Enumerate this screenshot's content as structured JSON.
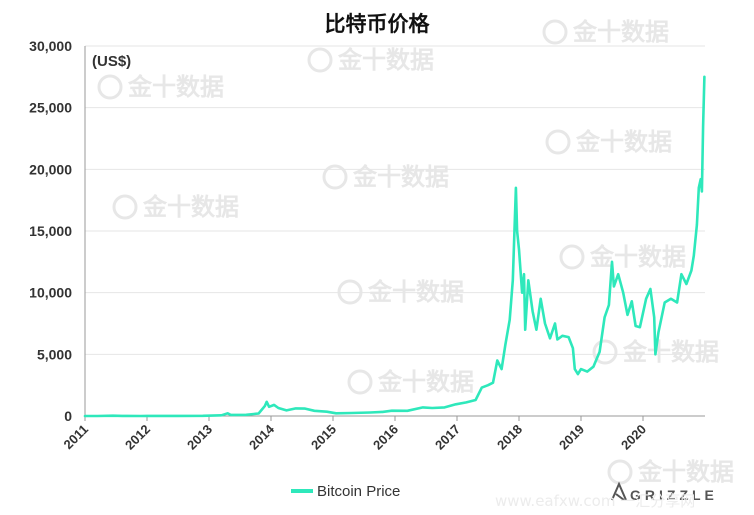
{
  "chart_data": {
    "type": "line",
    "title": "比特币价格",
    "unit_label": "(US$)",
    "ylim": [
      0,
      30000
    ],
    "y_ticks": [
      "0",
      "5,000",
      "10,000",
      "15,000",
      "20,000",
      "25,000",
      "30,000"
    ],
    "y_tick_values": [
      0,
      5000,
      10000,
      15000,
      20000,
      25000,
      30000
    ],
    "xlim": [
      2011.0,
      2021.0
    ],
    "x_ticks": [
      "2011",
      "2012",
      "2013",
      "2014",
      "2015",
      "2016",
      "2017",
      "2018",
      "2019",
      "2020"
    ],
    "x_tick_values": [
      2011,
      2012,
      2013,
      2014,
      2015,
      2016,
      2017,
      2018,
      2019,
      2020
    ],
    "grid": "horizontal",
    "legend_position": "bottom",
    "series": [
      {
        "name": "Bitcoin Price",
        "color": "#2ee8bb",
        "points": [
          [
            2011.0,
            0.3
          ],
          [
            2011.2,
            1
          ],
          [
            2011.45,
            25
          ],
          [
            2011.6,
            12
          ],
          [
            2011.9,
            4
          ],
          [
            2012.0,
            5
          ],
          [
            2012.5,
            7
          ],
          [
            2012.9,
            13
          ],
          [
            2013.2,
            60
          ],
          [
            2013.3,
            220
          ],
          [
            2013.35,
            90
          ],
          [
            2013.6,
            100
          ],
          [
            2013.8,
            200
          ],
          [
            2013.9,
            800
          ],
          [
            2013.93,
            1150
          ],
          [
            2013.97,
            750
          ],
          [
            2014.05,
            900
          ],
          [
            2014.12,
            650
          ],
          [
            2014.25,
            450
          ],
          [
            2014.4,
            620
          ],
          [
            2014.55,
            600
          ],
          [
            2014.7,
            420
          ],
          [
            2014.9,
            350
          ],
          [
            2015.05,
            220
          ],
          [
            2015.3,
            240
          ],
          [
            2015.6,
            280
          ],
          [
            2015.8,
            330
          ],
          [
            2015.95,
            430
          ],
          [
            2016.2,
            420
          ],
          [
            2016.45,
            700
          ],
          [
            2016.6,
            650
          ],
          [
            2016.8,
            700
          ],
          [
            2016.98,
            950
          ],
          [
            2017.15,
            1100
          ],
          [
            2017.3,
            1300
          ],
          [
            2017.4,
            2300
          ],
          [
            2017.5,
            2500
          ],
          [
            2017.58,
            2700
          ],
          [
            2017.65,
            4500
          ],
          [
            2017.72,
            3800
          ],
          [
            2017.78,
            5800
          ],
          [
            2017.85,
            7800
          ],
          [
            2017.9,
            11000
          ],
          [
            2017.95,
            18500
          ],
          [
            2017.97,
            15000
          ],
          [
            2018.0,
            13500
          ],
          [
            2018.05,
            10000
          ],
          [
            2018.08,
            11500
          ],
          [
            2018.1,
            7000
          ],
          [
            2018.15,
            11000
          ],
          [
            2018.22,
            8500
          ],
          [
            2018.28,
            7000
          ],
          [
            2018.35,
            9500
          ],
          [
            2018.42,
            7500
          ],
          [
            2018.5,
            6300
          ],
          [
            2018.58,
            7500
          ],
          [
            2018.62,
            6200
          ],
          [
            2018.7,
            6500
          ],
          [
            2018.8,
            6400
          ],
          [
            2018.87,
            5500
          ],
          [
            2018.9,
            3800
          ],
          [
            2018.95,
            3400
          ],
          [
            2019.0,
            3800
          ],
          [
            2019.1,
            3600
          ],
          [
            2019.2,
            4000
          ],
          [
            2019.3,
            5200
          ],
          [
            2019.38,
            8000
          ],
          [
            2019.45,
            9000
          ],
          [
            2019.5,
            12500
          ],
          [
            2019.53,
            10500
          ],
          [
            2019.6,
            11500
          ],
          [
            2019.68,
            10000
          ],
          [
            2019.75,
            8200
          ],
          [
            2019.82,
            9300
          ],
          [
            2019.88,
            7300
          ],
          [
            2019.95,
            7200
          ],
          [
            2020.05,
            9500
          ],
          [
            2020.12,
            10300
          ],
          [
            2020.18,
            8000
          ],
          [
            2020.2,
            5000
          ],
          [
            2020.25,
            6800
          ],
          [
            2020.35,
            9200
          ],
          [
            2020.45,
            9500
          ],
          [
            2020.55,
            9200
          ],
          [
            2020.62,
            11500
          ],
          [
            2020.7,
            10700
          ],
          [
            2020.78,
            11800
          ],
          [
            2020.82,
            13000
          ],
          [
            2020.87,
            15500
          ],
          [
            2020.9,
            18500
          ],
          [
            2020.93,
            19200
          ],
          [
            2020.95,
            18200
          ],
          [
            2020.97,
            23500
          ],
          [
            2020.99,
            27500
          ]
        ]
      }
    ]
  },
  "watermark": {
    "text": "金十数据",
    "source_brand": "GRIZZLE",
    "site_text": "www.eafxw.com 一汇分享网"
  }
}
